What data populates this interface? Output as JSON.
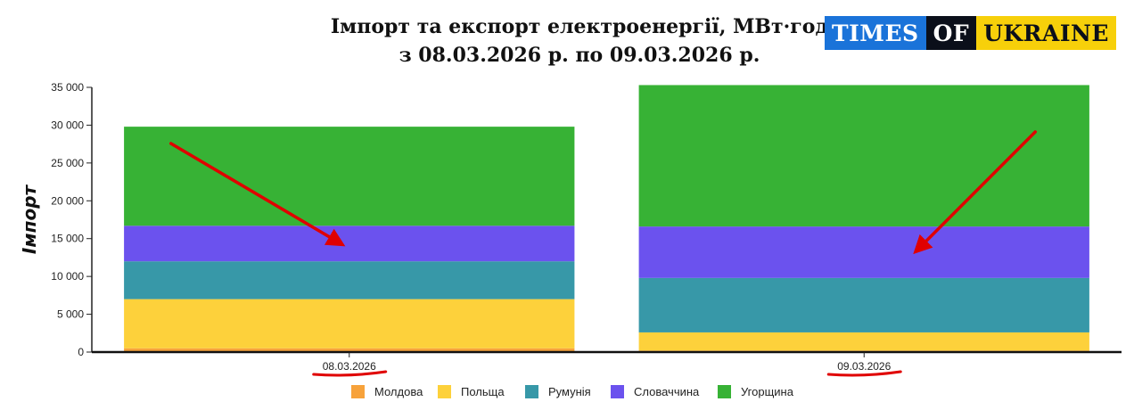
{
  "title": {
    "line1": "Імпорт та експорт електроенергії, МВт·год",
    "line2": "з 08.03.2026 р. по 09.03.2026 р."
  },
  "logo": {
    "part1": "TIMES",
    "part2": "OF",
    "part3": "UKRAINE"
  },
  "chart_data": {
    "type": "bar",
    "stacked": true,
    "categories": [
      "08.03.2026",
      "09.03.2026"
    ],
    "ylabel": "Імпорт",
    "ylim": [
      0,
      35000
    ],
    "yticks": [
      0,
      5000,
      10000,
      15000,
      20000,
      25000,
      30000,
      35000
    ],
    "ytick_labels": [
      "0",
      "5 000",
      "10 000",
      "15 000",
      "20 000",
      "25 000",
      "30 000",
      "35 000"
    ],
    "grid": false,
    "legend_position": "bottom",
    "series": [
      {
        "name": "Молдова",
        "color": "#f7a23b",
        "values": [
          500,
          200
        ]
      },
      {
        "name": "Польща",
        "color": "#fdd13b",
        "values": [
          6500,
          2400
        ]
      },
      {
        "name": "Румунія",
        "color": "#3798a8",
        "values": [
          5000,
          7200
        ]
      },
      {
        "name": "Словаччина",
        "color": "#6b52ee",
        "values": [
          4700,
          6800
        ]
      },
      {
        "name": "Угорщина",
        "color": "#37b235",
        "values": [
          13100,
          18700
        ]
      }
    ],
    "annotations": [
      {
        "type": "arrow",
        "color": "#e00000",
        "category": "08.03.2026"
      },
      {
        "type": "arrow",
        "color": "#e00000",
        "category": "09.03.2026"
      },
      {
        "type": "underline",
        "color": "#e00000",
        "category": "08.03.2026"
      },
      {
        "type": "underline",
        "color": "#e00000",
        "category": "09.03.2026"
      }
    ]
  }
}
